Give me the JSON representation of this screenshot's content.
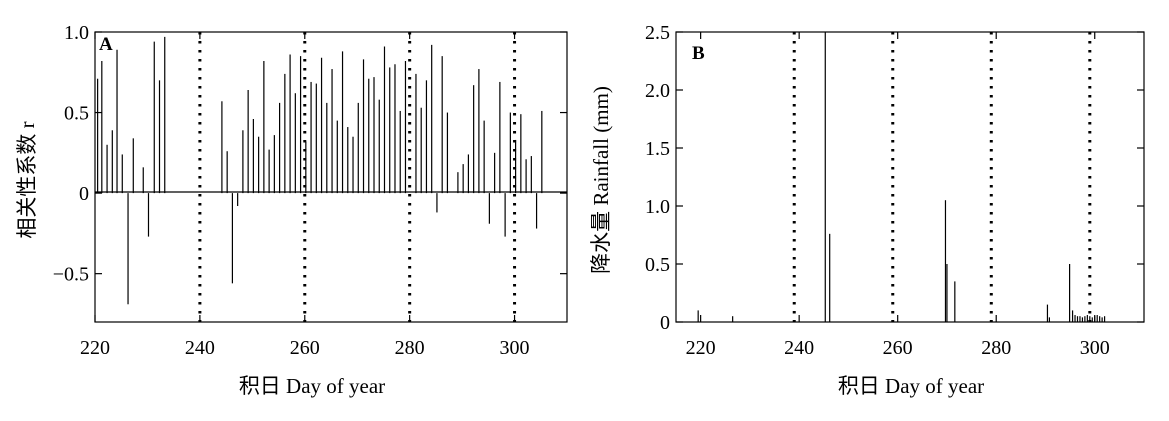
{
  "chart_data": [
    {
      "type": "bar",
      "panel_label": "A",
      "xlabel": "积日 Day of year",
      "ylabel": "相关性系数 r",
      "xlim": [
        220,
        310
      ],
      "ylim": [
        -0.8,
        1.0
      ],
      "x_ticks": [
        220,
        240,
        260,
        280,
        300
      ],
      "x_tick_labels": [
        "220",
        "240",
        "260",
        "280",
        "300"
      ],
      "y_ticks": [
        -0.5,
        0,
        0.5,
        1.0
      ],
      "y_tick_labels": [
        "−0.5",
        "0",
        "0.5",
        "1.0"
      ],
      "reference_lines_x": [
        240,
        260,
        280,
        300
      ],
      "grid": false,
      "points": [
        {
          "x": 220.5,
          "y": 0.71
        },
        {
          "x": 221.3,
          "y": 0.82
        },
        {
          "x": 222.3,
          "y": 0.3
        },
        {
          "x": 223.3,
          "y": 0.39
        },
        {
          "x": 224.2,
          "y": 0.89
        },
        {
          "x": 225.2,
          "y": 0.24
        },
        {
          "x": 226.3,
          "y": -0.69
        },
        {
          "x": 227.3,
          "y": 0.34
        },
        {
          "x": 229.2,
          "y": 0.16
        },
        {
          "x": 230.2,
          "y": -0.27
        },
        {
          "x": 231.3,
          "y": 0.94
        },
        {
          "x": 232.3,
          "y": 0.7
        },
        {
          "x": 233.3,
          "y": 0.97
        },
        {
          "x": 244.2,
          "y": 0.57
        },
        {
          "x": 245.2,
          "y": 0.26
        },
        {
          "x": 246.2,
          "y": -0.56
        },
        {
          "x": 247.2,
          "y": -0.08
        },
        {
          "x": 248.2,
          "y": 0.39
        },
        {
          "x": 249.2,
          "y": 0.64
        },
        {
          "x": 250.2,
          "y": 0.46
        },
        {
          "x": 251.2,
          "y": 0.35
        },
        {
          "x": 252.2,
          "y": 0.82
        },
        {
          "x": 253.2,
          "y": 0.27
        },
        {
          "x": 254.2,
          "y": 0.36
        },
        {
          "x": 255.2,
          "y": 0.56
        },
        {
          "x": 256.2,
          "y": 0.74
        },
        {
          "x": 257.2,
          "y": 0.86
        },
        {
          "x": 258.2,
          "y": 0.62
        },
        {
          "x": 259.2,
          "y": 0.85
        },
        {
          "x": 260.2,
          "y": 0.32
        },
        {
          "x": 261.2,
          "y": 0.69
        },
        {
          "x": 262.2,
          "y": 0.68
        },
        {
          "x": 263.2,
          "y": 0.84
        },
        {
          "x": 264.2,
          "y": 0.56
        },
        {
          "x": 265.2,
          "y": 0.77
        },
        {
          "x": 266.2,
          "y": 0.45
        },
        {
          "x": 267.2,
          "y": 0.88
        },
        {
          "x": 268.2,
          "y": 0.41
        },
        {
          "x": 269.2,
          "y": 0.35
        },
        {
          "x": 270.2,
          "y": 0.56
        },
        {
          "x": 271.2,
          "y": 0.83
        },
        {
          "x": 272.2,
          "y": 0.71
        },
        {
          "x": 273.2,
          "y": 0.72
        },
        {
          "x": 274.2,
          "y": 0.58
        },
        {
          "x": 275.2,
          "y": 0.91
        },
        {
          "x": 276.2,
          "y": 0.78
        },
        {
          "x": 277.2,
          "y": 0.8
        },
        {
          "x": 278.2,
          "y": 0.51
        },
        {
          "x": 279.2,
          "y": 0.82
        },
        {
          "x": 281.2,
          "y": 0.74
        },
        {
          "x": 282.2,
          "y": 0.53
        },
        {
          "x": 283.2,
          "y": 0.7
        },
        {
          "x": 284.2,
          "y": 0.92
        },
        {
          "x": 285.2,
          "y": -0.12
        },
        {
          "x": 286.2,
          "y": 0.85
        },
        {
          "x": 287.2,
          "y": 0.5
        },
        {
          "x": 289.2,
          "y": 0.13
        },
        {
          "x": 290.2,
          "y": 0.18
        },
        {
          "x": 291.2,
          "y": 0.24
        },
        {
          "x": 292.2,
          "y": 0.67
        },
        {
          "x": 293.2,
          "y": 0.77
        },
        {
          "x": 294.2,
          "y": 0.45
        },
        {
          "x": 295.2,
          "y": -0.19
        },
        {
          "x": 296.2,
          "y": 0.25
        },
        {
          "x": 297.2,
          "y": 0.69
        },
        {
          "x": 298.2,
          "y": -0.27
        },
        {
          "x": 299.2,
          "y": 0.5
        },
        {
          "x": 300.2,
          "y": 0.33
        },
        {
          "x": 301.2,
          "y": 0.49
        },
        {
          "x": 302.2,
          "y": 0.21
        },
        {
          "x": 303.2,
          "y": 0.23
        },
        {
          "x": 304.2,
          "y": -0.22
        },
        {
          "x": 305.2,
          "y": 0.51
        }
      ]
    },
    {
      "type": "bar",
      "panel_label": "B",
      "xlabel": "积日 Day of year",
      "ylabel": "降水量 Rainfall (mm)",
      "xlim": [
        215,
        310
      ],
      "ylim": [
        0,
        2.5
      ],
      "x_ticks": [
        220,
        240,
        260,
        280,
        300
      ],
      "x_tick_labels": [
        "220",
        "240",
        "260",
        "280",
        "300"
      ],
      "y_ticks": [
        0,
        0.5,
        1.0,
        1.5,
        2.0,
        2.5
      ],
      "y_tick_labels": [
        "0",
        "0.5",
        "1.0",
        "1.5",
        "2.0",
        "2.5"
      ],
      "reference_lines_x": [
        239,
        259,
        279,
        299
      ],
      "grid": false,
      "points": [
        {
          "x": 219.5,
          "y": 0.1
        },
        {
          "x": 226.5,
          "y": 0.05
        },
        {
          "x": 245.3,
          "y": 2.5
        },
        {
          "x": 246.2,
          "y": 0.76
        },
        {
          "x": 269.7,
          "y": 1.05
        },
        {
          "x": 270.0,
          "y": 0.5
        },
        {
          "x": 271.6,
          "y": 0.35
        },
        {
          "x": 290.4,
          "y": 0.15
        },
        {
          "x": 290.8,
          "y": 0.04
        },
        {
          "x": 294.9,
          "y": 0.5
        },
        {
          "x": 295.5,
          "y": 0.1
        },
        {
          "x": 296.0,
          "y": 0.06
        },
        {
          "x": 296.5,
          "y": 0.05
        },
        {
          "x": 297.0,
          "y": 0.05
        },
        {
          "x": 297.5,
          "y": 0.04
        },
        {
          "x": 298.0,
          "y": 0.05
        },
        {
          "x": 298.5,
          "y": 0.06
        },
        {
          "x": 299.0,
          "y": 0.05
        },
        {
          "x": 299.5,
          "y": 0.04
        },
        {
          "x": 300.0,
          "y": 0.05
        },
        {
          "x": 300.5,
          "y": 0.06
        },
        {
          "x": 301.0,
          "y": 0.05
        },
        {
          "x": 301.5,
          "y": 0.04
        },
        {
          "x": 302.0,
          "y": 0.05
        }
      ]
    }
  ]
}
